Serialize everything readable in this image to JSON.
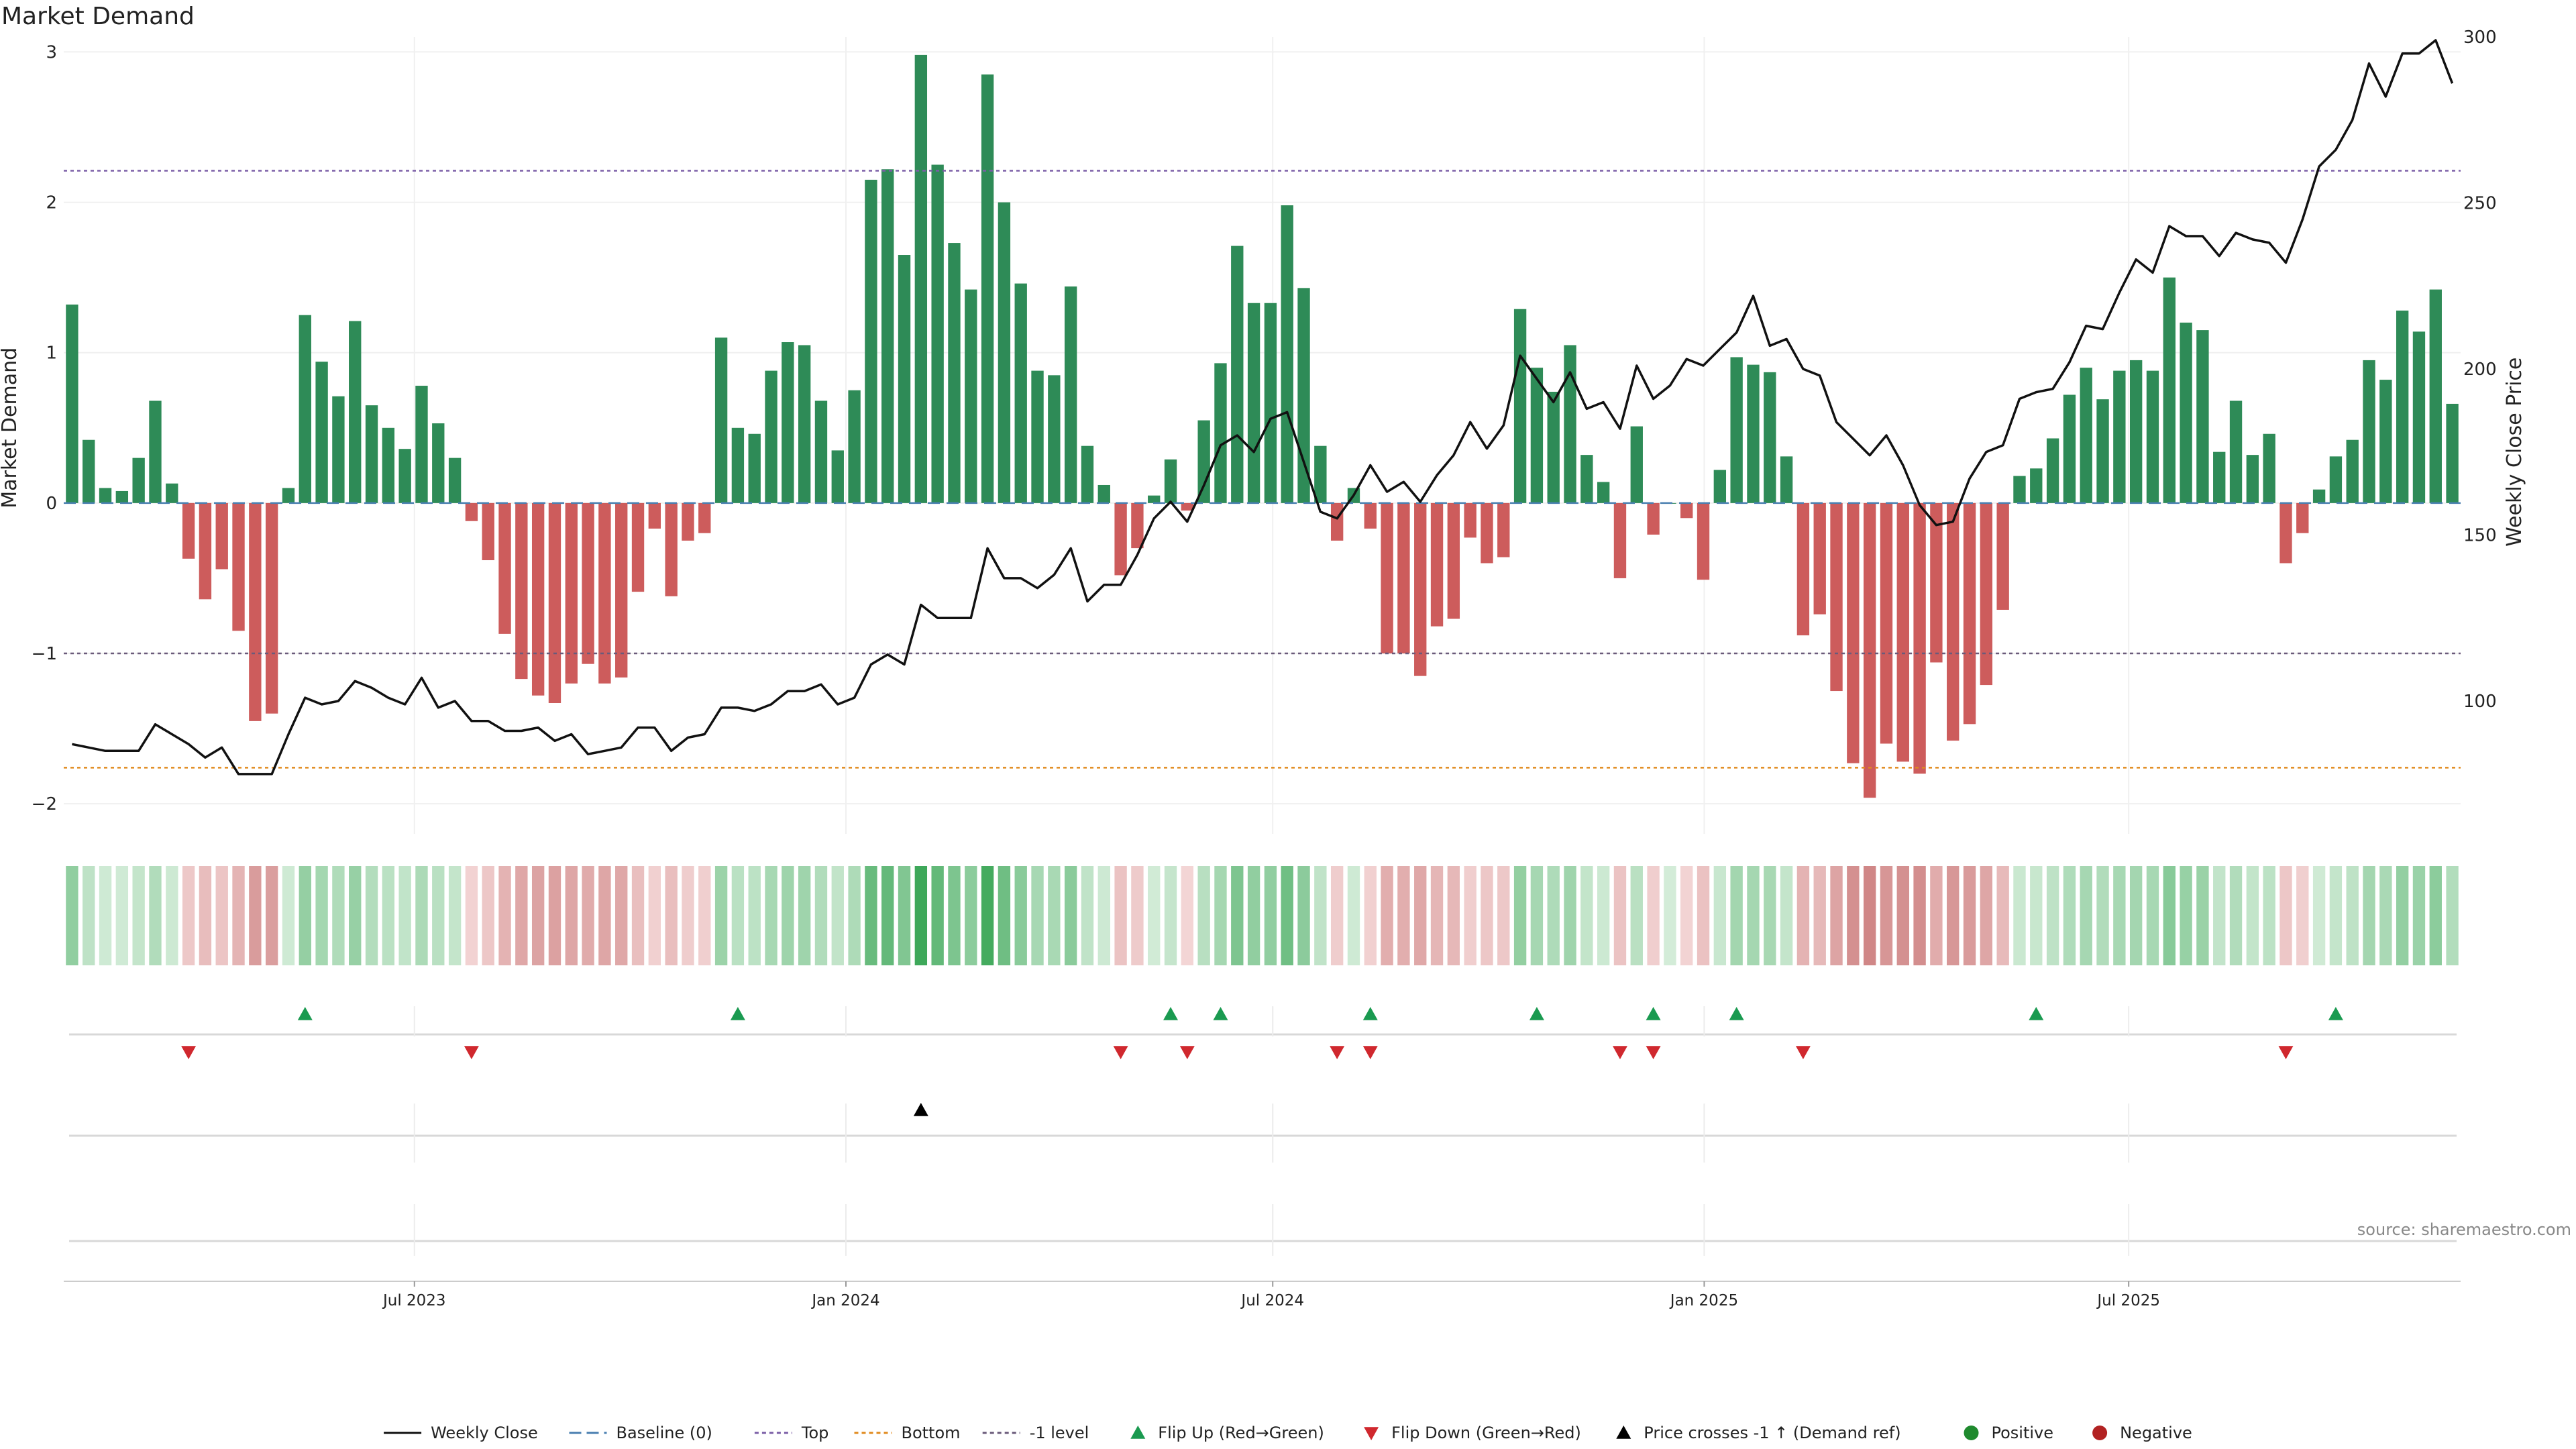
{
  "chart_data": {
    "type": "bar",
    "title": "Market Demand",
    "source": "source: sharemaestro.com",
    "ylabel": "Market Demand",
    "ylabel_right": "Weekly Close Price",
    "ylim": [
      -2.2,
      3.1
    ],
    "ylim_right": [
      60,
      300
    ],
    "yticks": [
      -2,
      -1,
      0,
      1,
      2,
      3
    ],
    "yticklabels": [
      "−2",
      "−1",
      "0",
      "1",
      "2",
      "3"
    ],
    "yticks_right": [
      100,
      150,
      200,
      250,
      300
    ],
    "x_start": "2023-02-05",
    "x_end": "2025-11-16",
    "xticks": [
      {
        "date": "2023-07-01",
        "label": "Jul 2023"
      },
      {
        "date": "2024-01-01",
        "label": "Jan 2024"
      },
      {
        "date": "2024-07-01",
        "label": "Jul 2024"
      },
      {
        "date": "2025-01-01",
        "label": "Jan 2025"
      },
      {
        "date": "2025-07-01",
        "label": "Jul 2025"
      }
    ],
    "demand": [
      1.32,
      0.42,
      0.1,
      0.08,
      0.3,
      0.68,
      0.13,
      -0.37,
      -0.64,
      -0.44,
      -0.85,
      -1.45,
      -1.4,
      0.1,
      1.25,
      0.94,
      0.71,
      1.21,
      0.65,
      0.5,
      0.36,
      0.78,
      0.53,
      0.3,
      -0.12,
      -0.38,
      -0.87,
      -1.17,
      -1.28,
      -1.33,
      -1.2,
      -1.07,
      -1.2,
      -1.16,
      -0.59,
      -0.17,
      -0.62,
      -0.25,
      -0.2,
      1.1,
      0.5,
      0.46,
      0.88,
      1.07,
      1.05,
      0.68,
      0.35,
      0.75,
      2.15,
      2.22,
      1.65,
      2.98,
      2.25,
      1.73,
      1.42,
      2.85,
      2.0,
      1.46,
      0.88,
      0.85,
      1.44,
      0.38,
      0.12,
      -0.48,
      -0.3,
      0.05,
      0.29,
      -0.05,
      0.55,
      0.93,
      1.71,
      1.33,
      1.33,
      1.98,
      1.43,
      0.38,
      -0.25,
      0.1,
      -0.17,
      -1.0,
      -1.0,
      -1.15,
      -0.82,
      -0.77,
      -0.23,
      -0.4,
      -0.36,
      1.29,
      0.9,
      0.74,
      1.05,
      0.32,
      0.14,
      -0.5,
      0.51,
      -0.21,
      0.0,
      -0.1,
      -0.51,
      0.22,
      0.97,
      0.92,
      0.87,
      0.31,
      -0.88,
      -0.74,
      -1.25,
      -1.73,
      -1.96,
      -1.6,
      -1.72,
      -1.8,
      -1.06,
      -1.58,
      -1.47,
      -1.21,
      -0.71,
      0.18,
      0.23,
      0.43,
      0.72,
      0.9,
      0.69,
      0.88,
      0.95,
      0.88,
      1.5,
      1.2,
      1.15,
      0.34,
      0.68,
      0.32,
      0.46,
      -0.4,
      -0.2,
      0.09,
      0.31,
      0.42,
      0.95,
      0.82,
      1.28,
      1.14,
      1.42,
      0.66
    ],
    "price": [
      87,
      86,
      85,
      85,
      85,
      93,
      90,
      87,
      83,
      86,
      78,
      78,
      78,
      90,
      101,
      99,
      100,
      106,
      104,
      101,
      99,
      107,
      98,
      100,
      94,
      94,
      91,
      91,
      92,
      88,
      90,
      84,
      85,
      86,
      92,
      92,
      85,
      89,
      90,
      98,
      98,
      97,
      99,
      103,
      103,
      105,
      99,
      101,
      111,
      114,
      111,
      129,
      125,
      125,
      125,
      146,
      137,
      137,
      134,
      138,
      146,
      130,
      135,
      135,
      144,
      155,
      160,
      154,
      165,
      177,
      180,
      175,
      185,
      187,
      172,
      157,
      155,
      162,
      171,
      163,
      166,
      160,
      168,
      174,
      184,
      176,
      183,
      204,
      197,
      190,
      199,
      188,
      190,
      182,
      201,
      191,
      195,
      203,
      201,
      206,
      211,
      222,
      207,
      209,
      200,
      198,
      184,
      179,
      174,
      180,
      171,
      159,
      153,
      154,
      167,
      175,
      177,
      191,
      193,
      194,
      202,
      213,
      212,
      223,
      233,
      229,
      243,
      240,
      240,
      234,
      241,
      239,
      238,
      232,
      245,
      261,
      266,
      275,
      292,
      282,
      295,
      295,
      299,
      286
    ],
    "heat_colors": {
      "pos_light": "#d3ecd8",
      "pos_dark": "#3ea85a",
      "neg_light": "#f4d7d7",
      "neg_dark": "#d08787"
    },
    "reference_lines": [
      {
        "name": "Top",
        "value": 2.21,
        "color": "#7b5ea7",
        "style": "dotted"
      },
      {
        "name": "-1 level",
        "value": -1.0,
        "color": "#6a5a7a",
        "style": "dotted"
      },
      {
        "name": "Bottom",
        "value": -1.76,
        "color": "#e08a1e",
        "style": "dotted"
      },
      {
        "name": "Baseline (0)",
        "value": 0,
        "color": "#4a7fb0",
        "style": "dashed"
      }
    ],
    "flip_up_weeks": [
      14,
      40,
      66,
      69,
      78,
      88,
      95,
      100,
      118,
      136
    ],
    "flip_down_weeks": [
      7,
      24,
      63,
      67,
      76,
      78,
      93,
      95,
      104,
      133
    ],
    "price_cross_weeks": [
      51
    ],
    "colors": {
      "positive": "#2e8b57",
      "negative": "#cd5c5c",
      "price": "#111111",
      "flip_up": "#1a9a50",
      "flip_down": "#d0282e",
      "cross": "#000000",
      "legend_positive": "#1f8a2e",
      "legend_negative": "#b22222"
    },
    "legend": [
      {
        "key": "line",
        "label": "Weekly Close",
        "color": "#111111"
      },
      {
        "key": "dashed",
        "label": "Baseline (0)",
        "color": "#4a7fb0"
      },
      {
        "key": "dotted",
        "label": "Top",
        "color": "#7b5ea7"
      },
      {
        "key": "dotted",
        "label": "Bottom",
        "color": "#e08a1e"
      },
      {
        "key": "dotted",
        "label": "-1 level",
        "color": "#6a5a7a"
      },
      {
        "key": "tri-up",
        "label": "Flip Up (Red→Green)",
        "color": "#1a9a50"
      },
      {
        "key": "tri-down",
        "label": "Flip Down (Green→Red)",
        "color": "#d0282e"
      },
      {
        "key": "tri-up",
        "label": "Price crosses -1 ↑ (Demand ref)",
        "color": "#000000"
      },
      {
        "key": "dot",
        "label": "Positive",
        "color": "#1f8a2e"
      },
      {
        "key": "dot",
        "label": "Negative",
        "color": "#b22222"
      }
    ]
  }
}
